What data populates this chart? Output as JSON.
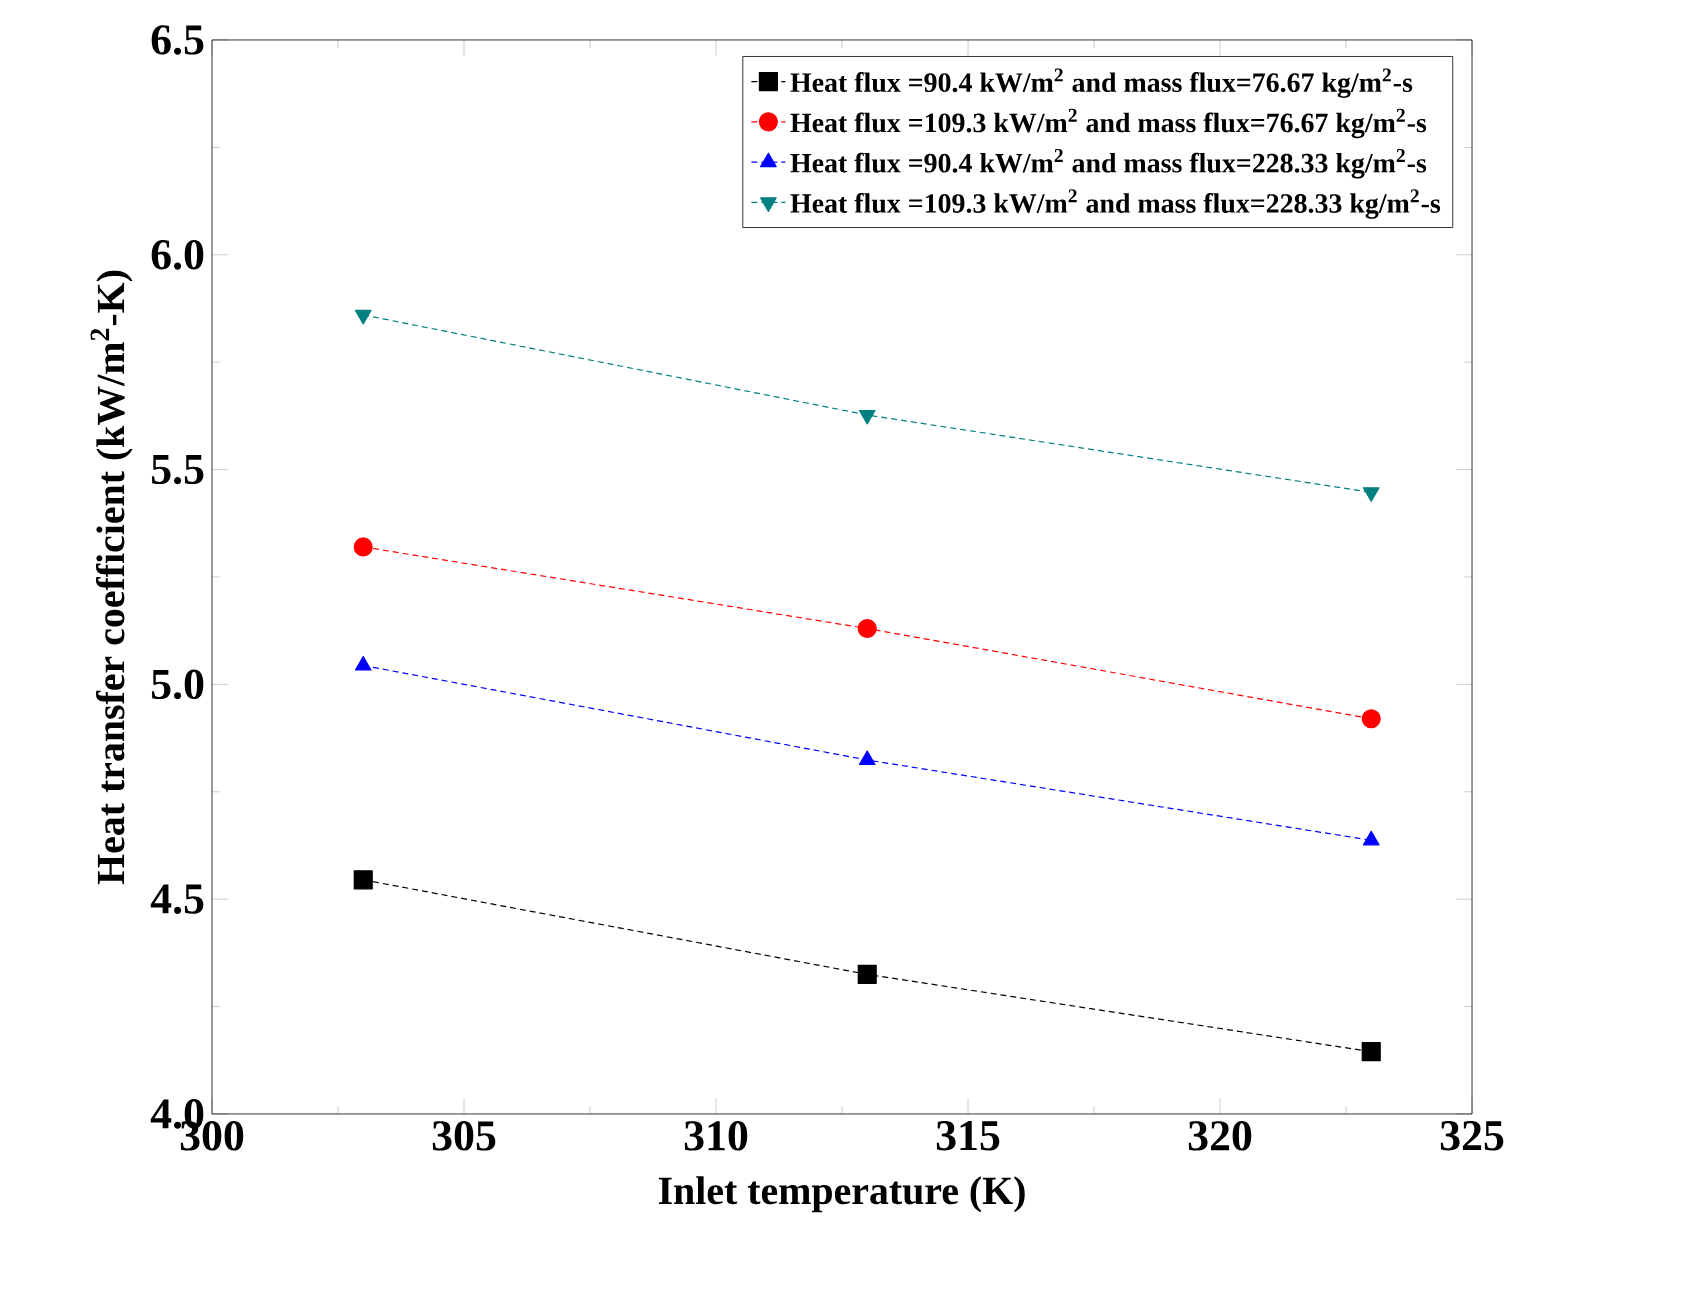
{
  "chart_data": {
    "type": "line",
    "xlabel": "Inlet temperature (K)",
    "ylabel": "Heat transfer coefficient (kW/m$^{2}$-K)",
    "x": [
      303,
      313,
      323
    ],
    "series": [
      {
        "name": "Heat flux =90.4 kW/m$^{2}$ and mass flux=76.67 kg/m$^{2}$-s",
        "color": "#000000",
        "marker": "square",
        "values": [
          4.545,
          4.325,
          4.145
        ]
      },
      {
        "name": "Heat flux =109.3 kW/m$^{2}$ and mass flux=76.67 kg/m$^{2}$-s",
        "color": "#ff0000",
        "marker": "circle",
        "values": [
          5.32,
          5.13,
          4.92
        ]
      },
      {
        "name": "Heat flux =90.4 kW/m$^{2}$ and mass flux=228.33 kg/m$^{2}$-s",
        "color": "#0000ff",
        "marker": "triangle",
        "values": [
          5.044,
          4.824,
          4.637
        ]
      },
      {
        "name": "Heat flux =109.3 kW/m$^{2}$ and mass flux=228.33 kg/m$^{2}$-s",
        "color": "#008080",
        "marker": "triangle-down",
        "values": [
          5.86,
          5.627,
          5.447
        ]
      }
    ],
    "xlim": [
      300,
      325
    ],
    "xticks": [
      300,
      305,
      310,
      315,
      320,
      325
    ],
    "ylim": [
      4.0,
      6.5
    ],
    "yticks": [
      {
        "value": 4.0,
        "label": "4.0"
      },
      {
        "value": 4.5,
        "label": "4.5"
      },
      {
        "value": 5.0,
        "label": "5.0"
      },
      {
        "value": 5.5,
        "label": "5.5"
      },
      {
        "value": 6.0,
        "label": "6.0"
      },
      {
        "value": 6.5,
        "label": "6.5"
      }
    ],
    "grid": false,
    "legend": "top right",
    "line_style": "dashed"
  }
}
